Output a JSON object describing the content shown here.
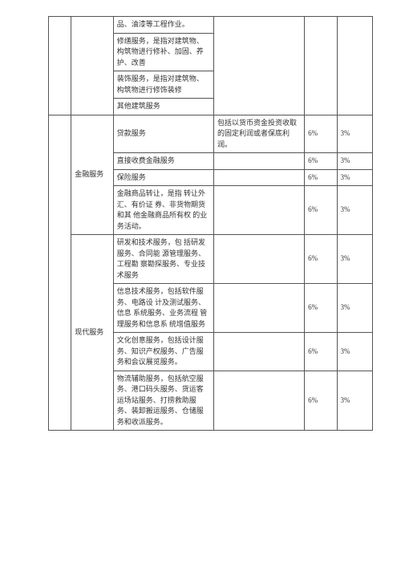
{
  "colors": {
    "border": "#555555",
    "text": "#333333",
    "background": "#ffffff"
  },
  "typography": {
    "fontsize_pt": 7,
    "font_family": "SimSun / 宋体"
  },
  "table": {
    "columns": 6,
    "rows": [
      {
        "cat": "",
        "desc": "品、油漆等工程作业。",
        "note": "",
        "r1": "",
        "r2": ""
      },
      {
        "cat": "",
        "desc": "修缮服务，是指对建筑物、构筑物进行修补、加固、养护、改善",
        "note": "",
        "r1": "",
        "r2": ""
      },
      {
        "cat": "",
        "desc": "装饰服务，是指对建筑物、构筑物进行修饰装修",
        "note": "",
        "r1": "",
        "r2": ""
      },
      {
        "cat": "",
        "desc": "其他建筑服务",
        "note": "",
        "r1": "",
        "r2": ""
      },
      {
        "cat": "金融服务",
        "desc": "贷款服务",
        "note": "包括以货币资金投资收取的固定利润或者保底利润。",
        "r1": "6%",
        "r2": "3%"
      },
      {
        "cat": "",
        "desc": "直接收费金融服务",
        "note": "",
        "r1": "6%",
        "r2": "3%"
      },
      {
        "cat": "",
        "desc": "保险服务",
        "note": "",
        "r1": "6%",
        "r2": "3%"
      },
      {
        "cat": "",
        "desc": "金融商品转让，是指 转让外汇、有价证 券、非货物期货和其 他金融商品所有权 的业务活动。",
        "note": "",
        "r1": "6%",
        "r2": "3%"
      },
      {
        "cat": "现代服务",
        "desc": "研发和技术服务，包 括研发服务、合同能 源管理服务、工程勘 察勘探服务、专业技 术服务",
        "note": "",
        "r1": "6%",
        "r2": "3%"
      },
      {
        "cat": "",
        "desc": "信息技术服务，包括软件服务、电路设 计及测试服务、信息 系统服务、业务流程 管理服务和信息系 统增值服务",
        "note": "",
        "r1": "6%",
        "r2": "3%"
      },
      {
        "cat": "",
        "desc": "文化创意服务，包括设计服务、知识产权服务、广告服务和会议展览服务。",
        "note": "",
        "r1": "6%",
        "r2": "3%"
      },
      {
        "cat": "",
        "desc": "物流辅助服务，包括航空服务、港口码头服务、货运客运场站服务、打捞救助服务、装卸搬运服务、仓储服务和收派服务。",
        "note": "",
        "r1": "6%",
        "r2": "3%"
      }
    ]
  }
}
